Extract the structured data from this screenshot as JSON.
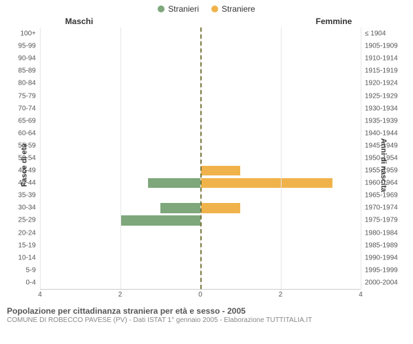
{
  "legend": {
    "items": [
      {
        "label": "Stranieri",
        "color": "#7ea77b"
      },
      {
        "label": "Straniere",
        "color": "#f0b34b"
      }
    ]
  },
  "headers": {
    "left": "Maschi",
    "right": "Femmine"
  },
  "axis_labels": {
    "left": "Fasce di età",
    "right": "Anni di nascita"
  },
  "chart": {
    "type": "population-pyramid",
    "xmax": 4,
    "xticks_left": [
      4,
      2,
      0
    ],
    "xticks_right": [
      0,
      2,
      4
    ],
    "grid_color": "#e6e6e6",
    "center_line_color": "#7a7a40",
    "background_color": "#ffffff",
    "bar_color_left": "#7ea77b",
    "bar_color_right": "#f0b34b",
    "categories": [
      {
        "age": "100+",
        "years": "≤ 1904",
        "male": 0,
        "female": 0
      },
      {
        "age": "95-99",
        "years": "1905-1909",
        "male": 0,
        "female": 0
      },
      {
        "age": "90-94",
        "years": "1910-1914",
        "male": 0,
        "female": 0
      },
      {
        "age": "85-89",
        "years": "1915-1919",
        "male": 0,
        "female": 0
      },
      {
        "age": "80-84",
        "years": "1920-1924",
        "male": 0,
        "female": 0
      },
      {
        "age": "75-79",
        "years": "1925-1929",
        "male": 0,
        "female": 0
      },
      {
        "age": "70-74",
        "years": "1930-1934",
        "male": 0,
        "female": 0
      },
      {
        "age": "65-69",
        "years": "1935-1939",
        "male": 0,
        "female": 0
      },
      {
        "age": "60-64",
        "years": "1940-1944",
        "male": 0,
        "female": 0
      },
      {
        "age": "55-59",
        "years": "1945-1949",
        "male": 0,
        "female": 0
      },
      {
        "age": "50-54",
        "years": "1950-1954",
        "male": 0,
        "female": 0
      },
      {
        "age": "45-49",
        "years": "1955-1959",
        "male": 0,
        "female": 1
      },
      {
        "age": "40-44",
        "years": "1960-1964",
        "male": 1.3,
        "female": 3.3
      },
      {
        "age": "35-39",
        "years": "1965-1969",
        "male": 0,
        "female": 0
      },
      {
        "age": "30-34",
        "years": "1970-1974",
        "male": 1,
        "female": 1
      },
      {
        "age": "25-29",
        "years": "1975-1979",
        "male": 2,
        "female": 0
      },
      {
        "age": "20-24",
        "years": "1980-1984",
        "male": 0,
        "female": 0
      },
      {
        "age": "15-19",
        "years": "1985-1989",
        "male": 0,
        "female": 0
      },
      {
        "age": "10-14",
        "years": "1990-1994",
        "male": 0,
        "female": 0
      },
      {
        "age": "5-9",
        "years": "1995-1999",
        "male": 0,
        "female": 0
      },
      {
        "age": "0-4",
        "years": "2000-2004",
        "male": 0,
        "female": 0
      }
    ]
  },
  "footer": {
    "title": "Popolazione per cittadinanza straniera per età e sesso - 2005",
    "sub": "COMUNE DI ROBECCO PAVESE (PV) - Dati ISTAT 1° gennaio 2005 - Elaborazione TUTTITALIA.IT"
  }
}
